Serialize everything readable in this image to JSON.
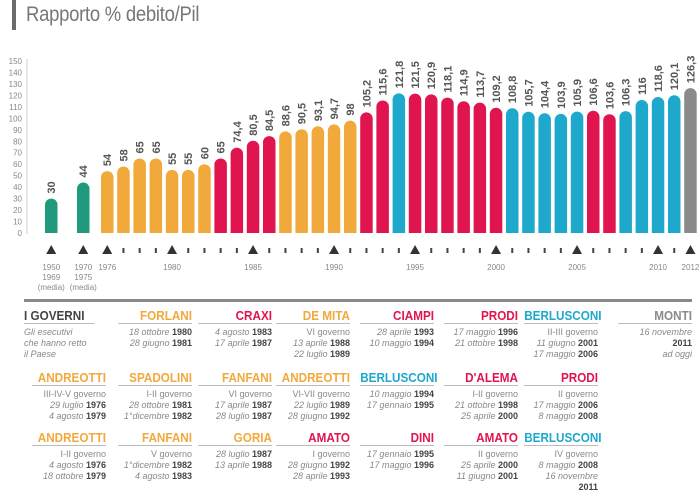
{
  "subtitle": "Rapporto % debito/Pil",
  "colors": {
    "green": "#1f9a7c",
    "orange": "#f2a93b",
    "red": "#e0154f",
    "blue": "#1ea8cc",
    "gray": "#8a8a8a"
  },
  "chart_data": {
    "type": "bar",
    "title": "Rapporto % debito/Pil",
    "xlabel": "",
    "ylabel": "",
    "ylim": [
      0,
      150
    ],
    "yticks": [
      0,
      10,
      20,
      30,
      40,
      50,
      60,
      70,
      80,
      90,
      100,
      110,
      120,
      130,
      140,
      150
    ],
    "grid": false,
    "bars": [
      {
        "period": "1950-1969 (media)",
        "value": 30,
        "label": "30",
        "color": "green"
      },
      {
        "period": "1970-1975 (media)",
        "value": 44,
        "label": "44",
        "color": "green"
      },
      {
        "period": "1976",
        "value": 54,
        "label": "54",
        "color": "orange"
      },
      {
        "period": "1977",
        "value": 58,
        "label": "58",
        "color": "orange"
      },
      {
        "period": "1978",
        "value": 65,
        "label": "65",
        "color": "orange"
      },
      {
        "period": "1979",
        "value": 65,
        "label": "65",
        "color": "orange"
      },
      {
        "period": "1980",
        "value": 55,
        "label": "55",
        "color": "orange"
      },
      {
        "period": "1981",
        "value": 55,
        "label": "55",
        "color": "orange"
      },
      {
        "period": "1982",
        "value": 60,
        "label": "60",
        "color": "orange"
      },
      {
        "period": "1983",
        "value": 65,
        "label": "65",
        "color": "red"
      },
      {
        "period": "1984",
        "value": 74.4,
        "label": "74,4",
        "color": "red"
      },
      {
        "period": "1985",
        "value": 80.5,
        "label": "80,5",
        "color": "red"
      },
      {
        "period": "1986",
        "value": 84.5,
        "label": "84,5",
        "color": "red"
      },
      {
        "period": "1987",
        "value": 88.6,
        "label": "88,6",
        "color": "orange"
      },
      {
        "period": "1988",
        "value": 90.5,
        "label": "90,5",
        "color": "orange"
      },
      {
        "period": "1989",
        "value": 93.1,
        "label": "93,1",
        "color": "orange"
      },
      {
        "period": "1990",
        "value": 94.7,
        "label": "94,7",
        "color": "orange"
      },
      {
        "period": "1991",
        "value": 98,
        "label": "98",
        "color": "orange"
      },
      {
        "period": "1992",
        "value": 105.2,
        "label": "105,2",
        "color": "red"
      },
      {
        "period": "1993",
        "value": 115.6,
        "label": "115,6",
        "color": "red"
      },
      {
        "period": "1994",
        "value": 121.8,
        "label": "121,8",
        "color": "blue"
      },
      {
        "period": "1995",
        "value": 121.5,
        "label": "121,5",
        "color": "red"
      },
      {
        "period": "1996",
        "value": 120.9,
        "label": "120,9",
        "color": "red"
      },
      {
        "period": "1997",
        "value": 118.1,
        "label": "118,1",
        "color": "red"
      },
      {
        "period": "1998",
        "value": 114.9,
        "label": "114,9",
        "color": "red"
      },
      {
        "period": "1999",
        "value": 113.7,
        "label": "113,7",
        "color": "red"
      },
      {
        "period": "2000",
        "value": 109.2,
        "label": "109,2",
        "color": "red"
      },
      {
        "period": "2001",
        "value": 108.8,
        "label": "108,8",
        "color": "blue"
      },
      {
        "period": "2002",
        "value": 105.7,
        "label": "105,7",
        "color": "blue"
      },
      {
        "period": "2003",
        "value": 104.4,
        "label": "104,4",
        "color": "blue"
      },
      {
        "period": "2004",
        "value": 103.9,
        "label": "103,9",
        "color": "blue"
      },
      {
        "period": "2005",
        "value": 105.9,
        "label": "105,9",
        "color": "blue"
      },
      {
        "period": "2006",
        "value": 106.6,
        "label": "106,6",
        "color": "red"
      },
      {
        "period": "2007",
        "value": 103.6,
        "label": "103,6",
        "color": "red"
      },
      {
        "period": "2008",
        "value": 106.3,
        "label": "106,3",
        "color": "blue"
      },
      {
        "period": "2009",
        "value": 116,
        "label": "116",
        "color": "blue"
      },
      {
        "period": "2010",
        "value": 118.6,
        "label": "118,6",
        "color": "blue"
      },
      {
        "period": "2011",
        "value": 120.1,
        "label": "120,1",
        "color": "blue"
      },
      {
        "period": "2012",
        "value": 126.3,
        "label": "126,3",
        "color": "gray"
      }
    ],
    "x_tick_labels": [
      {
        "bar": 0,
        "lines": [
          "1950",
          "1969",
          "(media)"
        ],
        "marker": "triangle"
      },
      {
        "bar": 1,
        "lines": [
          "1970",
          "1975",
          "(media)"
        ],
        "marker": "triangle"
      },
      {
        "bar": 2,
        "lines": [
          "1976"
        ],
        "marker": "triangle"
      },
      {
        "bar": 6,
        "lines": [
          "1980"
        ],
        "marker": "triangle"
      },
      {
        "bar": 11,
        "lines": [
          "1985"
        ],
        "marker": "triangle"
      },
      {
        "bar": 16,
        "lines": [
          "1990"
        ],
        "marker": "triangle"
      },
      {
        "bar": 21,
        "lines": [
          "1995"
        ],
        "marker": "triangle"
      },
      {
        "bar": 26,
        "lines": [
          "2000"
        ],
        "marker": "triangle"
      },
      {
        "bar": 31,
        "lines": [
          "2005"
        ],
        "marker": "triangle"
      },
      {
        "bar": 36,
        "lines": [
          "2010"
        ],
        "marker": "triangle"
      },
      {
        "bar": 38,
        "lines": [
          "2012"
        ],
        "marker": "triangle"
      }
    ]
  },
  "governments": {
    "header": {
      "title": "I GOVERNI",
      "description": [
        "Gli esecutivi",
        "che hanno retto",
        "il Paese"
      ]
    },
    "entries": [
      {
        "name": "FORLANI",
        "color": "orange",
        "lines": [
          {
            "it": "18 ottobre",
            "year": "1980"
          },
          {
            "it": "28 giugno",
            "year": "1981"
          }
        ]
      },
      {
        "name": "CRAXI",
        "color": "red",
        "lines": [
          {
            "it": "4 agosto",
            "year": "1983"
          },
          {
            "it": "17 aprile",
            "year": "1987"
          }
        ]
      },
      {
        "name": "DE MITA",
        "color": "orange",
        "lines": [
          {
            "plain": "VI governo"
          },
          {
            "it": "13 aprile",
            "year": "1988"
          },
          {
            "it": "22 luglio",
            "year": "1989"
          }
        ]
      },
      {
        "name": "CIAMPI",
        "color": "red",
        "lines": [
          {
            "it": "28 aprile",
            "year": "1993"
          },
          {
            "it": "10 maggio",
            "year": "1994"
          }
        ]
      },
      {
        "name": "PRODI",
        "color": "red",
        "lines": [
          {
            "it": "17 maggio",
            "year": "1996"
          },
          {
            "it": "21 ottobre",
            "year": "1998"
          }
        ]
      },
      {
        "name": "BERLUSCONI",
        "color": "blue",
        "lines": [
          {
            "plain": "II-III governo"
          },
          {
            "it": "11 giugno",
            "year": "2001"
          },
          {
            "it": "17 maggio",
            "year": "2006"
          }
        ]
      },
      {
        "name": "MONTI",
        "color": "gray",
        "lines": [
          {
            "it": "16 novembre",
            "year": ""
          },
          {
            "it": "",
            "year": "2011"
          },
          {
            "it": "ad oggi",
            "year": ""
          }
        ]
      },
      {
        "name": "ANDREOTTI",
        "color": "orange",
        "lines": [
          {
            "plain": "III-IV-V governo"
          },
          {
            "it": "29 luglio",
            "year": "1976"
          },
          {
            "it": "4 agosto",
            "year": "1979"
          }
        ]
      },
      {
        "name": "SPADOLINI",
        "color": "orange",
        "lines": [
          {
            "plain": "I-II governo"
          },
          {
            "it": "28 ottobre",
            "year": "1981"
          },
          {
            "it": "1°dicembre",
            "year": "1982"
          }
        ]
      },
      {
        "name": "FANFANI",
        "color": "orange",
        "lines": [
          {
            "plain": "VI governo"
          },
          {
            "it": "17 aprile",
            "year": "1987"
          },
          {
            "it": "28 luglio",
            "year": "1987"
          }
        ]
      },
      {
        "name": "ANDREOTTI",
        "color": "orange",
        "lines": [
          {
            "plain": "VI-VII governo"
          },
          {
            "it": "22 luglio",
            "year": "1989"
          },
          {
            "it": "28 giugno",
            "year": "1992"
          }
        ]
      },
      {
        "name": "BERLUSCONI",
        "color": "blue",
        "lines": [
          {
            "it": "10 maggio",
            "year": "1994"
          },
          {
            "it": "17 gennaio",
            "year": "1995"
          }
        ]
      },
      {
        "name": "D'ALEMA",
        "color": "red",
        "lines": [
          {
            "plain": "I-II governo"
          },
          {
            "it": "21 ottobre",
            "year": "1998"
          },
          {
            "it": "25 aprile",
            "year": "2000"
          }
        ]
      },
      {
        "name": "PRODI",
        "color": "red",
        "lines": [
          {
            "plain": "II governo"
          },
          {
            "it": "17 maggio",
            "year": "2006"
          },
          {
            "it": "8 maggio",
            "year": "2008"
          }
        ]
      },
      {
        "name": "ANDREOTTI",
        "color": "orange",
        "lines": [
          {
            "plain": "I-II governo"
          },
          {
            "it": "4 agosto",
            "year": "1976"
          },
          {
            "it": "18 ottobre",
            "year": "1979"
          }
        ]
      },
      {
        "name": "FANFANI",
        "color": "orange",
        "lines": [
          {
            "plain": "V governo"
          },
          {
            "it": "1°dicembre",
            "year": "1982"
          },
          {
            "it": "4 agosto",
            "year": "1983"
          }
        ]
      },
      {
        "name": "GORIA",
        "color": "orange",
        "lines": [
          {
            "it": "28 luglio",
            "year": "1987"
          },
          {
            "it": "13 aprile",
            "year": "1988"
          }
        ]
      },
      {
        "name": "AMATO",
        "color": "red",
        "lines": [
          {
            "plain": "I governo"
          },
          {
            "it": "28 giugno",
            "year": "1992"
          },
          {
            "it": "28 aprile",
            "year": "1993"
          }
        ]
      },
      {
        "name": "DINI",
        "color": "red",
        "lines": [
          {
            "it": "17 gennaio",
            "year": "1995"
          },
          {
            "it": "17 maggio",
            "year": "1996"
          }
        ]
      },
      {
        "name": "AMATO",
        "color": "red",
        "lines": [
          {
            "plain": "II governo"
          },
          {
            "it": "25 aprile",
            "year": "2000"
          },
          {
            "it": "11 giugno",
            "year": "2001"
          }
        ]
      },
      {
        "name": "BERLUSCONI",
        "color": "blue",
        "lines": [
          {
            "plain": "IV governo"
          },
          {
            "it": "8 maggio",
            "year": "2008"
          },
          {
            "it": "16 novembre",
            "year": ""
          },
          {
            "it": "",
            "year": "2011"
          }
        ]
      }
    ]
  }
}
